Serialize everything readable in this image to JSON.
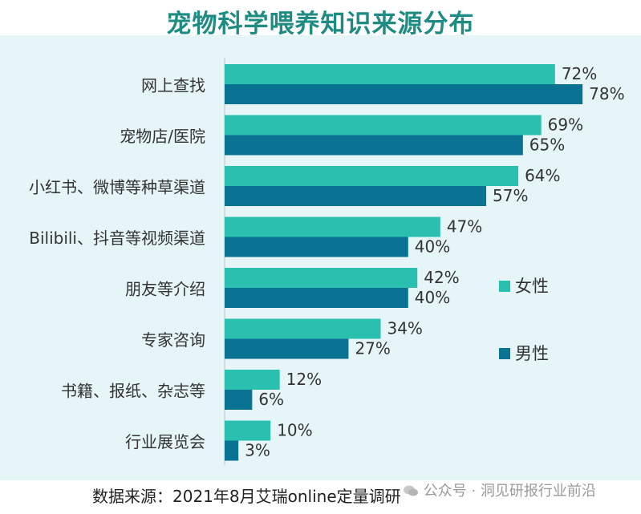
{
  "chart_data": {
    "type": "bar",
    "orientation": "horizontal",
    "title": "宠物科学喂养知识来源分布",
    "categories": [
      "网上查找",
      "宠物店/医院",
      "小红书、微博等种草渠道",
      "Bilibili、抖音等视频渠道",
      "朋友等介绍",
      "专家咨询",
      "书籍、报纸、杂志等",
      "行业展览会"
    ],
    "series": [
      {
        "name": "女性",
        "values": [
          72,
          69,
          64,
          47,
          42,
          34,
          12,
          10
        ],
        "color": "#2bbfb0"
      },
      {
        "name": "男性",
        "values": [
          78,
          65,
          57,
          40,
          40,
          27,
          6,
          3
        ],
        "color": "#0a7293"
      }
    ],
    "value_format": "{v}%",
    "xlim": [
      0,
      100
    ],
    "grid": false,
    "legend_position": "right"
  },
  "source_text": "数据来源：2021年8月艾瑞online定量调研",
  "watermark_text": "公众号 · 洞见研报行业前沿"
}
